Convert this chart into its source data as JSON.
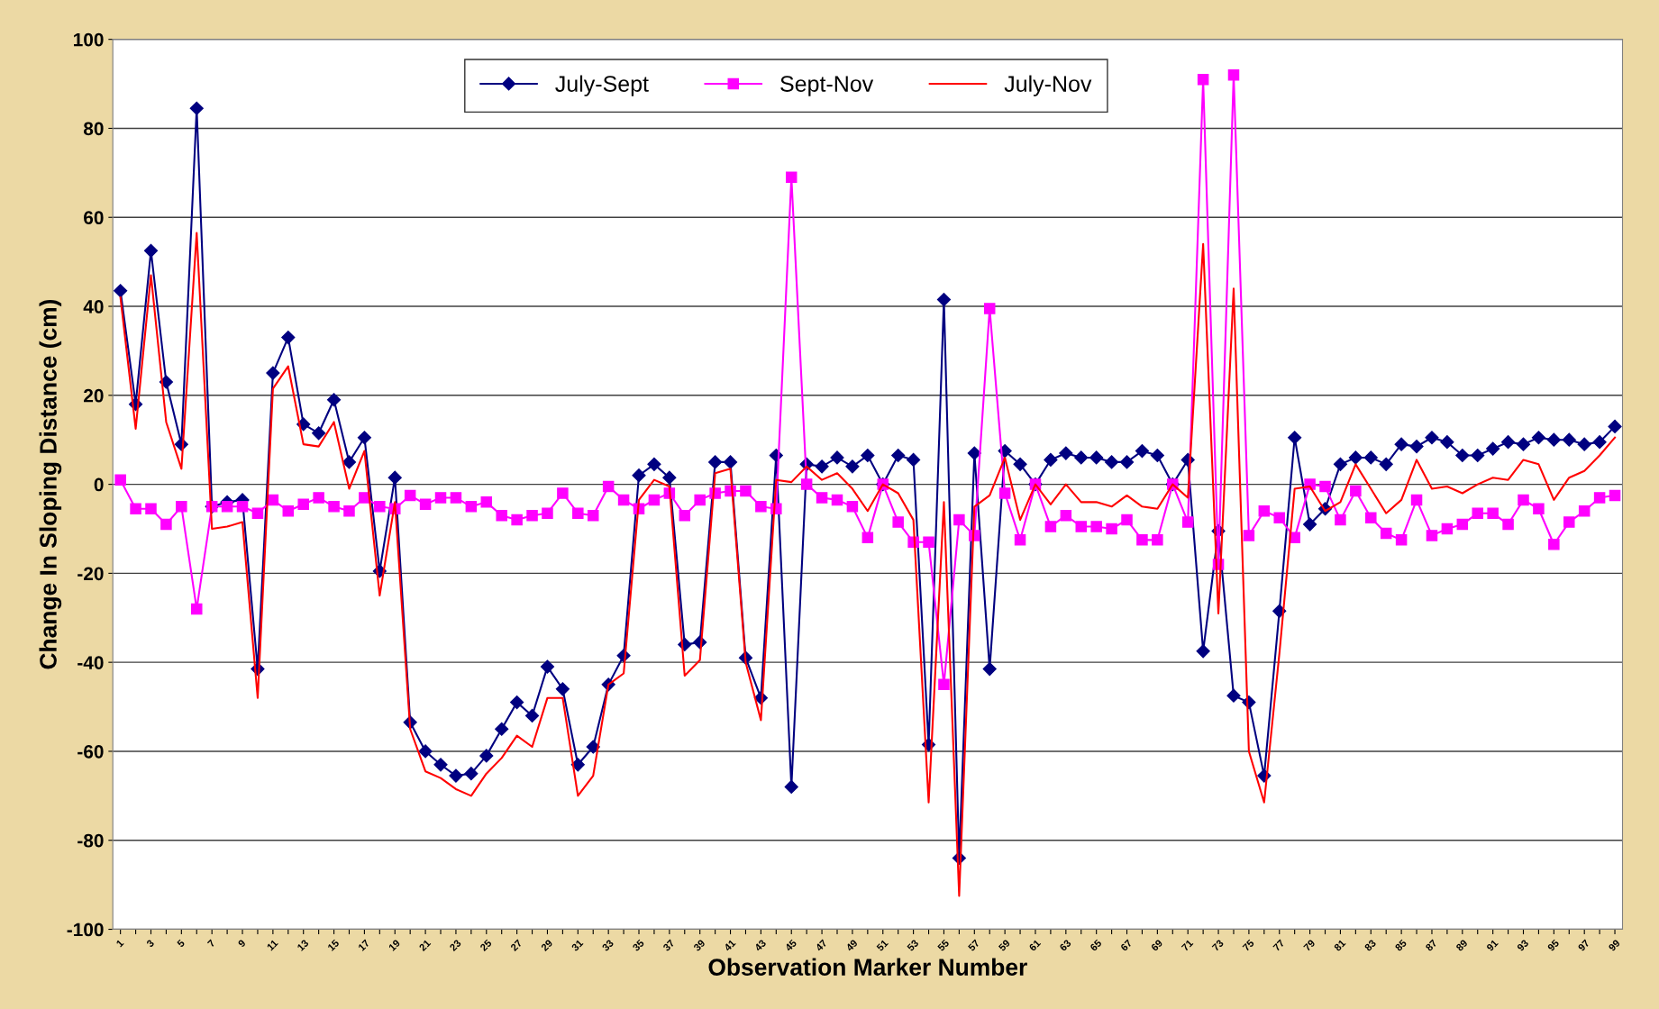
{
  "chart_data": {
    "type": "line",
    "xlabel": "Observation Marker Number",
    "ylabel": "Change In Sloping Distance (cm)",
    "categories": [
      "1",
      null,
      "3",
      null,
      "5",
      null,
      "7",
      null,
      "9",
      null,
      "11",
      null,
      "13",
      null,
      "15",
      null,
      "17",
      null,
      "19",
      null,
      "21",
      null,
      "23",
      null,
      "25",
      null,
      "27",
      null,
      "29",
      null,
      "31",
      null,
      "33",
      null,
      "35",
      null,
      "37",
      null,
      "39",
      null,
      "41",
      null,
      "43",
      null,
      "45",
      null,
      "47",
      null,
      "49",
      null,
      "51",
      null,
      "53",
      null,
      "55",
      null,
      "57",
      null,
      "59",
      null,
      "61",
      null,
      "63",
      null,
      "65",
      null,
      "67",
      null,
      "69",
      null,
      "71",
      null,
      "73",
      null,
      "75",
      null,
      "77",
      null,
      "79",
      null,
      "81",
      null,
      "83",
      null,
      "85",
      null,
      "87",
      null,
      "89",
      null,
      "91",
      null,
      "93",
      null,
      "95",
      null,
      "97",
      null,
      "99"
    ],
    "series": [
      {
        "name": "July-Sept",
        "color": "#000080",
        "marker": "diamond",
        "values": [
          43.5,
          18,
          52.5,
          23,
          9,
          84.5,
          -5,
          -4,
          -3.5,
          -41.5,
          25,
          33,
          13.5,
          11.5,
          19,
          5,
          10.5,
          -19.5,
          1.5,
          -53.5,
          -60,
          -63,
          -65.5,
          -65,
          -61,
          -55,
          -49,
          -52,
          -41,
          -46,
          -63,
          -59,
          -45,
          -38.5,
          2,
          4.5,
          1.5,
          -36,
          -35.5,
          5,
          5,
          -39,
          -48,
          6.5,
          -68,
          4.5,
          4,
          6,
          4,
          6.5,
          0,
          6.5,
          5.5,
          -58.5,
          41.5,
          -84,
          7,
          -41.5,
          7.5,
          4.5,
          0,
          5.5,
          7,
          6,
          6,
          5,
          5,
          7.5,
          6.5,
          0,
          5.5,
          -37.5,
          -10.5,
          -47.5,
          -49,
          -65.5,
          -28.5,
          10.5,
          -9,
          -5.5,
          4.5,
          6,
          6,
          4.5,
          9,
          8.5,
          10.5,
          9.5,
          6.5,
          6.5,
          8,
          9.5,
          9,
          10.5,
          10,
          10,
          9,
          9.5,
          13
        ]
      },
      {
        "name": "Sept-Nov",
        "color": "#ff00ff",
        "marker": "square",
        "values": [
          1,
          -5.5,
          -5.5,
          -9,
          -5,
          -28,
          -5,
          -5,
          -5,
          -6.5,
          -3.5,
          -6,
          -4.5,
          -3,
          -5,
          -6,
          -3,
          -5,
          -5.5,
          -2.5,
          -4.5,
          -3,
          -3,
          -5,
          -4,
          -7,
          -8,
          -7,
          -6.5,
          -2,
          -6.5,
          -7,
          -0.5,
          -3.5,
          -5.5,
          -3.5,
          -2,
          -7,
          -3.5,
          -2,
          -1.5,
          -1.5,
          -5,
          -5.5,
          69,
          0,
          -3,
          -3.5,
          -5,
          -12,
          0,
          -8.5,
          -13,
          -13,
          -45,
          -8,
          -11.5,
          39.5,
          -2,
          -12.5,
          0,
          -9.5,
          -7,
          -9.5,
          -9.5,
          -10,
          -8,
          -12.5,
          -12.5,
          0,
          -8.5,
          91,
          -18,
          92,
          -11.5,
          -6,
          -7.5,
          -12,
          0,
          -0.5,
          -8,
          -1.5,
          -7.5,
          -11,
          -12.5,
          -3.5,
          -11.5,
          -10,
          -9,
          -6.5,
          -6.5,
          -9,
          -3.5,
          -5.5,
          -13.5,
          -8.5,
          -6,
          -3,
          -2.5
        ]
      },
      {
        "name": "July-Nov",
        "color": "#ff0000",
        "marker": "none",
        "values": [
          42,
          12.5,
          47,
          14,
          3.5,
          56.5,
          -10,
          -9.5,
          -8.5,
          -48,
          21.5,
          26.5,
          9,
          8.5,
          14,
          -1,
          7.5,
          -25,
          -4,
          -55,
          -64.5,
          -66,
          -68.5,
          -70,
          -65,
          -61.5,
          -56.5,
          -59,
          -48,
          -48,
          -70,
          -65.5,
          -45,
          -42.5,
          -3.5,
          1,
          -0.5,
          -43,
          -39.5,
          2.5,
          3.5,
          -40,
          -53,
          1,
          0.5,
          4,
          1,
          2.5,
          -1,
          -6,
          0,
          -2,
          -8,
          -71.5,
          -4,
          -92.5,
          -5,
          -2.5,
          6,
          -8,
          0,
          -4.5,
          0,
          -4,
          -4,
          -5,
          -2.5,
          -5,
          -5.5,
          0,
          -3,
          54,
          -29,
          44,
          -60,
          -71.5,
          -38,
          -1,
          -0.5,
          -6,
          -4,
          4.5,
          -1,
          -6.5,
          -3.5,
          5.5,
          -1,
          -0.5,
          -2,
          0,
          1.5,
          1,
          5.5,
          4.5,
          -3.5,
          1.5,
          3,
          6.5,
          10.5
        ]
      }
    ],
    "ylim": [
      -100,
      100
    ],
    "yticks": [
      -100,
      -80,
      -60,
      -40,
      -20,
      0,
      20,
      40,
      60,
      80,
      100
    ],
    "grid": "y",
    "legend": "top",
    "line_style": "solid"
  }
}
